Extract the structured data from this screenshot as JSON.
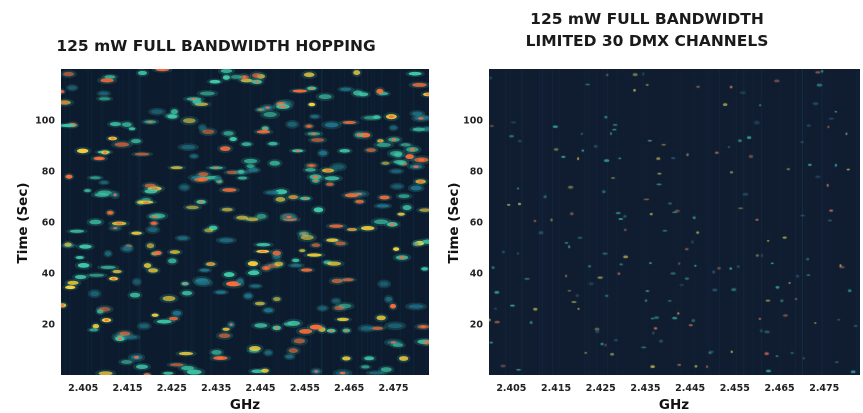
{
  "chart_data": [
    {
      "type": "heatmap",
      "title": [
        "125 mW FULL BANDWIDTH HOPPING"
      ],
      "xlabel": "GHz",
      "ylabel": "Time (Sec)",
      "x_ticks": [
        "2.405",
        "2.415",
        "2.425",
        "2.435",
        "2.445",
        "2.455",
        "2.465",
        "2.475"
      ],
      "y_ticks": [
        "20",
        "40",
        "60",
        "80",
        "100"
      ],
      "xlim": [
        2.4,
        2.483
      ],
      "ylim": [
        0,
        120
      ],
      "density": "high",
      "colors": {
        "background": "#0d1b2e",
        "low": "#1e6f8c",
        "mid": "#3fc9a8",
        "high": "#ffd23a",
        "peak": "#ff6b3a"
      }
    },
    {
      "type": "heatmap",
      "title": [
        "125 mW FULL BANDWIDTH",
        "LIMITED 30 DMX CHANNELS"
      ],
      "xlabel": "GHz",
      "ylabel": "Time (Sec)",
      "x_ticks": [
        "2.405",
        "2.415",
        "2.425",
        "2.435",
        "2.445",
        "2.455",
        "2.465",
        "2.475"
      ],
      "y_ticks": [
        "20",
        "40",
        "60",
        "80",
        "100"
      ],
      "xlim": [
        2.4,
        2.483
      ],
      "ylim": [
        0,
        120
      ],
      "density": "low",
      "colors": {
        "background": "#101c30",
        "low": "#2a5878",
        "mid": "#3aa8a0",
        "high": "#c8b04a",
        "peak": "#d8604a"
      }
    }
  ]
}
